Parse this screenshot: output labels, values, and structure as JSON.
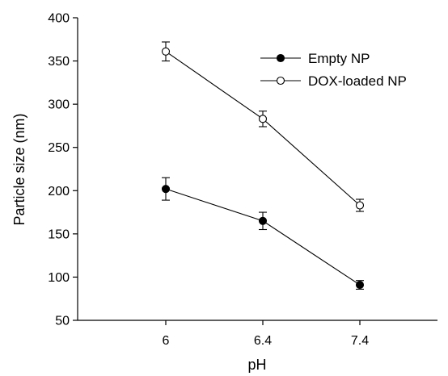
{
  "chart_data": {
    "type": "line",
    "xlabel": "pH",
    "ylabel": "Particle size (nm)",
    "x": [
      "6",
      "6.4",
      "7.4"
    ],
    "ylim": [
      50,
      400
    ],
    "yticks": [
      50,
      100,
      150,
      200,
      250,
      300,
      350,
      400
    ],
    "grid": false,
    "legend_position": "top-right",
    "series": [
      {
        "name": "Empty NP",
        "marker": "filled-circle",
        "values": [
          202,
          165,
          91
        ],
        "errors": [
          13,
          10,
          5
        ]
      },
      {
        "name": "DOX-loaded NP",
        "marker": "open-circle",
        "values": [
          361,
          283,
          183
        ],
        "errors": [
          11,
          9,
          7
        ]
      }
    ]
  }
}
